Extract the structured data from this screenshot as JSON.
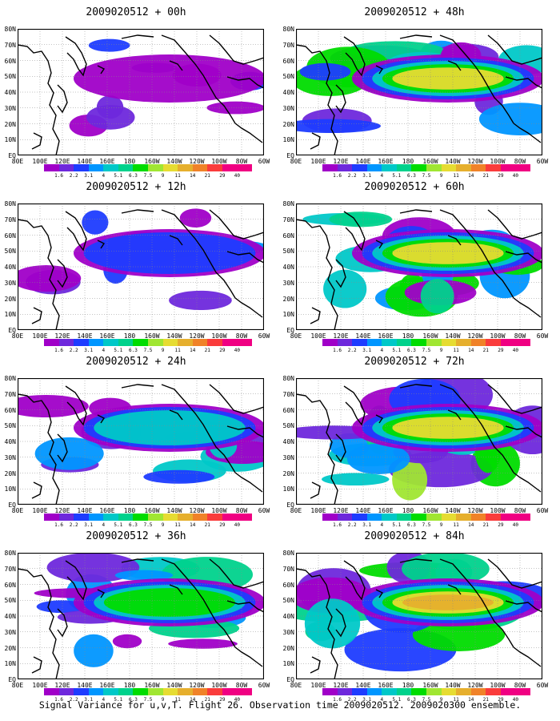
{
  "figure": {
    "caption": "Signal Variance for u,v,T. Flight 26. Observation time 2009020512. 2009020300 ensemble.",
    "panels": [
      {
        "title": "2009020512 + 00h",
        "intensity": 0.15
      },
      {
        "title": "2009020512 + 12h",
        "intensity": 0.35
      },
      {
        "title": "2009020512 + 24h",
        "intensity": 0.5
      },
      {
        "title": "2009020512 + 36h",
        "intensity": 0.62
      },
      {
        "title": "2009020512 + 48h",
        "intensity": 0.75
      },
      {
        "title": "2009020512 + 60h",
        "intensity": 0.82
      },
      {
        "title": "2009020512 + 72h",
        "intensity": 0.9
      },
      {
        "title": "2009020512 + 84h",
        "intensity": 1.0
      }
    ],
    "lat_labels": [
      "80N",
      "70N",
      "60N",
      "50N",
      "40N",
      "30N",
      "20N",
      "10N",
      "EQ"
    ],
    "lon_labels": [
      "80E",
      "100E",
      "120E",
      "140E",
      "160E",
      "180",
      "160W",
      "140W",
      "120W",
      "100W",
      "80W",
      "60W"
    ],
    "colorbar": {
      "labels": [
        "1.6",
        "2.2",
        "3.1",
        "4",
        "5.1",
        "6.3",
        "7.5",
        "9",
        "11",
        "14",
        "21",
        "29",
        "40"
      ],
      "colors": [
        "#a000c8",
        "#6e28dc",
        "#1e3cff",
        "#0096ff",
        "#00c8c8",
        "#00d28c",
        "#00dc00",
        "#a0e632",
        "#e6dc32",
        "#e6af2d",
        "#f08228",
        "#fa3c3c",
        "#f00082"
      ]
    }
  }
}
